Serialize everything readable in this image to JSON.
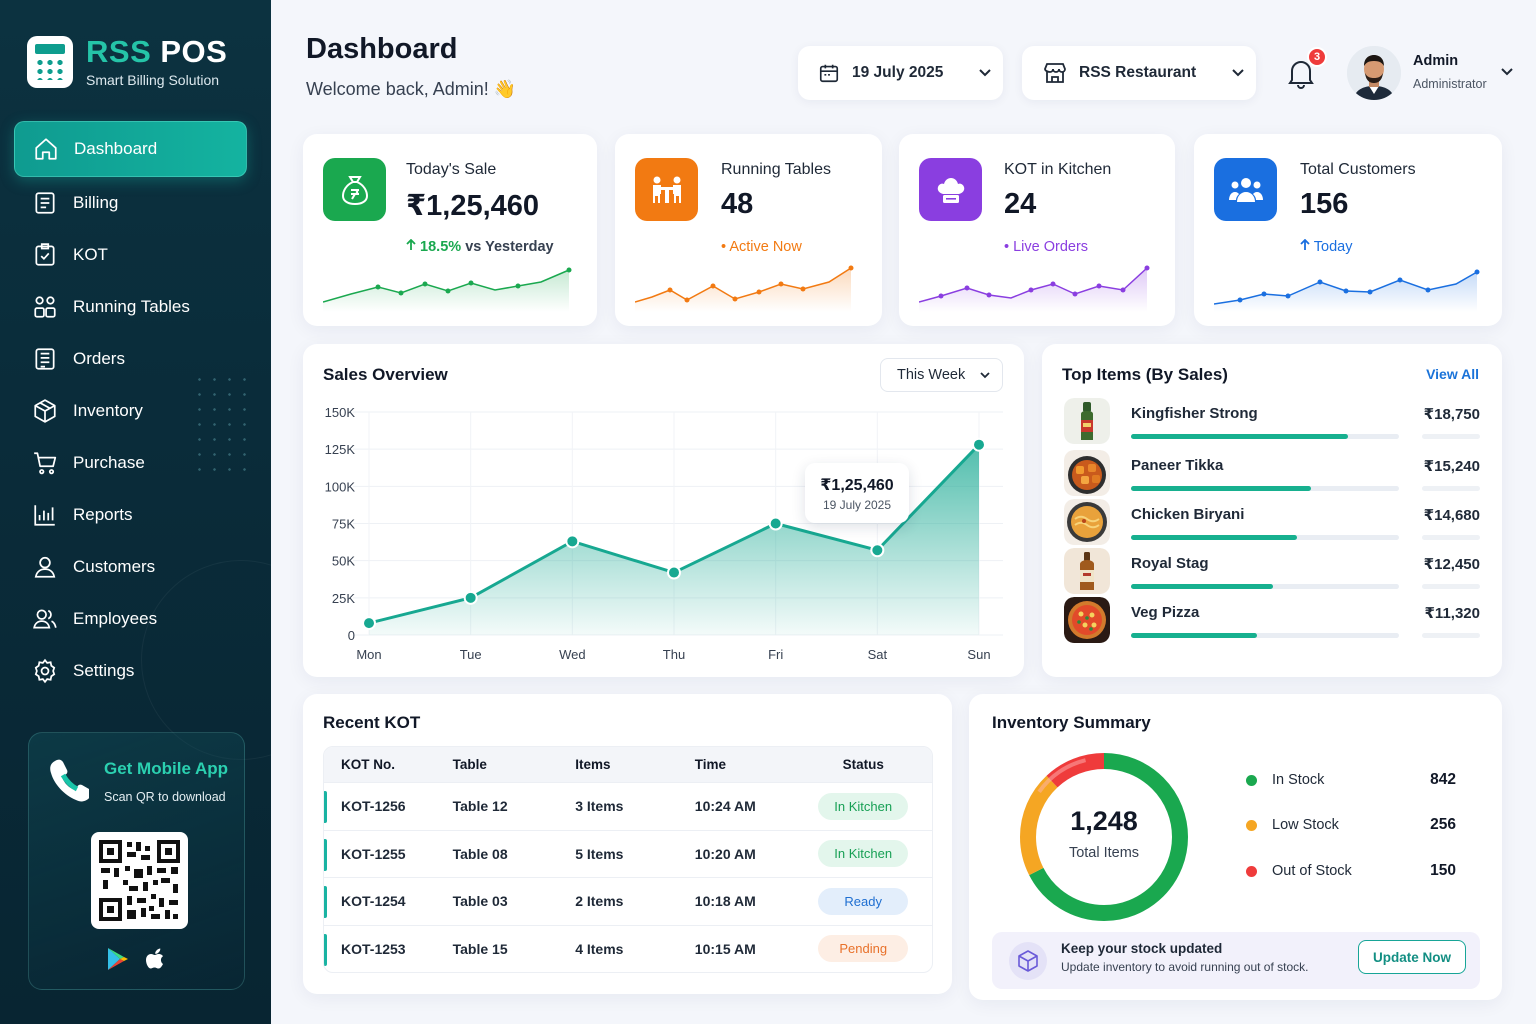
{
  "brand": {
    "name_part1": "RSS",
    "name_part2": "POS",
    "subtitle": "Smart Billing Solution"
  },
  "sidebar": {
    "items": [
      {
        "label": "Dashboard",
        "icon": "home-icon",
        "active": true
      },
      {
        "label": "Billing",
        "icon": "receipt-icon"
      },
      {
        "label": "KOT",
        "icon": "clipboard-check-icon"
      },
      {
        "label": "Running Tables",
        "icon": "tables-icon"
      },
      {
        "label": "Orders",
        "icon": "orders-icon"
      },
      {
        "label": "Inventory",
        "icon": "box-icon"
      },
      {
        "label": "Purchase",
        "icon": "cart-icon"
      },
      {
        "label": "Reports",
        "icon": "chart-icon"
      },
      {
        "label": "Customers",
        "icon": "user-icon"
      },
      {
        "label": "Employees",
        "icon": "users-icon"
      },
      {
        "label": "Settings",
        "icon": "gear-icon"
      }
    ],
    "app": {
      "title": "Get Mobile App",
      "subtitle": "Scan QR to download"
    }
  },
  "header": {
    "title": "Dashboard",
    "welcome": "Welcome back, Admin! 👋",
    "date": "19 July 2025",
    "restaurant": "RSS Restaurant",
    "notifications": "3",
    "user": {
      "name": "Admin",
      "role": "Administrator"
    }
  },
  "stats": [
    {
      "label": "Today's Sale",
      "value": "₹1,25,460",
      "note_value": "18.5%",
      "note_text": "vs Yesterday",
      "color": "#1aa84f"
    },
    {
      "label": "Running Tables",
      "value": "48",
      "note_text": "Active Now",
      "color": "#f27a12"
    },
    {
      "label": "KOT in Kitchen",
      "value": "24",
      "note_text": "Live Orders",
      "color": "#8a3ee0"
    },
    {
      "label": "Total Customers",
      "value": "156",
      "note_text": "Today",
      "color": "#1a6fe0"
    }
  ],
  "sales_overview": {
    "title": "Sales Overview",
    "period": "This Week",
    "tooltip": {
      "value": "₹1,25,460",
      "date": "19 July 2025"
    }
  },
  "chart_data": {
    "type": "area",
    "categories": [
      "Mon",
      "Tue",
      "Wed",
      "Thu",
      "Fri",
      "Sat",
      "Sun"
    ],
    "values": [
      8000,
      25000,
      63000,
      42000,
      75000,
      57000,
      128000
    ],
    "yticks": [
      "0",
      "25K",
      "50K",
      "75K",
      "100K",
      "125K",
      "150K"
    ],
    "ylim": [
      0,
      150000
    ],
    "color": "#17a891"
  },
  "top_items": {
    "title": "Top Items (By Sales)",
    "view_all": "View All",
    "items": [
      {
        "name": "Kingfisher Strong",
        "amount": "₹18,750",
        "share": 0.81
      },
      {
        "name": "Paneer Tikka",
        "amount": "₹15,240",
        "share": 0.67
      },
      {
        "name": "Chicken Biryani",
        "amount": "₹14,680",
        "share": 0.62
      },
      {
        "name": "Royal Stag",
        "amount": "₹12,450",
        "share": 0.53
      },
      {
        "name": "Veg Pizza",
        "amount": "₹11,320",
        "share": 0.47
      }
    ]
  },
  "recent_kot": {
    "title": "Recent KOT",
    "columns": [
      "KOT No.",
      "Table",
      "Items",
      "Time",
      "Status"
    ],
    "rows": [
      {
        "kot": "KOT-1256",
        "table": "Table 12",
        "items": "3 Items",
        "time": "10:24 AM",
        "status": "In Kitchen"
      },
      {
        "kot": "KOT-1255",
        "table": "Table 08",
        "items": "5 Items",
        "time": "10:20 AM",
        "status": "In Kitchen"
      },
      {
        "kot": "KOT-1254",
        "table": "Table 03",
        "items": "2 Items",
        "time": "10:18 AM",
        "status": "Ready"
      },
      {
        "kot": "KOT-1253",
        "table": "Table 15",
        "items": "4 Items",
        "time": "10:15 AM",
        "status": "Pending"
      }
    ]
  },
  "inventory": {
    "title": "Inventory Summary",
    "total": "1,248",
    "total_label": "Total Items",
    "legend": [
      {
        "label": "In Stock",
        "value": "842",
        "color": "#1aa84f"
      },
      {
        "label": "Low Stock",
        "value": "256",
        "color": "#f5a623"
      },
      {
        "label": "Out of Stock",
        "value": "150",
        "color": "#ef3b3b"
      }
    ],
    "notice_title": "Keep your stock updated",
    "notice_sub": "Update inventory to avoid running out of stock.",
    "button": "Update Now"
  }
}
